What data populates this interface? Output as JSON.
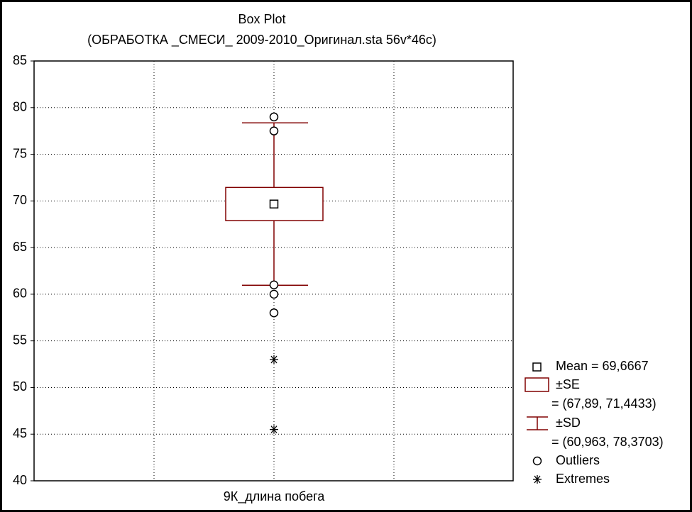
{
  "chart_data": {
    "type": "box",
    "title": "Box Plot",
    "subtitle": "(ОБРАБОТКА _СМЕСИ_ 2009-2010_Оригинал.sta 56v*46c)",
    "categories": [
      "9К_длина побега"
    ],
    "ylim": [
      40,
      85
    ],
    "yticks": [
      40,
      45,
      50,
      55,
      60,
      65,
      70,
      75,
      80,
      85
    ],
    "grid": true,
    "color": "#800000",
    "mean": 69.6667,
    "se": [
      67.89,
      71.4433
    ],
    "sd": [
      60.963,
      78.3703
    ],
    "outliers": [
      79,
      77.5,
      61,
      60,
      58
    ],
    "extremes": [
      53,
      45.5
    ],
    "legend": {
      "mean": "Mean = 69,6667",
      "se": "±SE",
      "se_range": "= (67,89, 71,4433)",
      "sd": "±SD",
      "sd_range": "= (60,963, 78,3703)",
      "outliers": "Outliers",
      "extremes": "Extremes"
    }
  }
}
